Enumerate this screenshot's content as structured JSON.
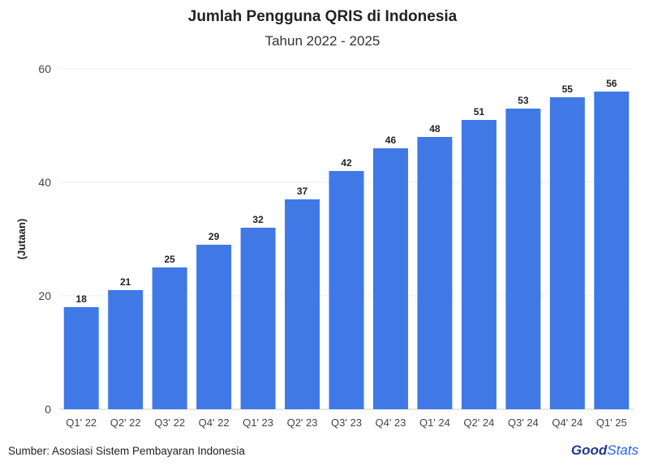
{
  "chart_data": {
    "type": "bar",
    "title": "Jumlah Pengguna QRIS di Indonesia",
    "subtitle": "Tahun 2022 - 2025",
    "ylabel": "(Jutaan)",
    "xlabel": "",
    "categories": [
      "Q1' 22",
      "Q2' 22",
      "Q3' 22",
      "Q4' 22",
      "Q1' 23",
      "Q2' 23",
      "Q3' 23",
      "Q4' 23",
      "Q1' 24",
      "Q2' 24",
      "Q3' 24",
      "Q4' 24",
      "Q1' 25"
    ],
    "values": [
      18,
      21,
      25,
      29,
      32,
      37,
      42,
      46,
      48,
      51,
      53,
      55,
      56
    ],
    "ylim": [
      0,
      60
    ],
    "yticks": [
      0,
      20,
      40,
      60
    ],
    "grid": true,
    "bar_color": "#4079e6"
  },
  "footer": {
    "source": "Sumber: Asosiasi Sistem Pembayaran Indonesia",
    "logo_good": "Good",
    "logo_stats": "Stats"
  }
}
